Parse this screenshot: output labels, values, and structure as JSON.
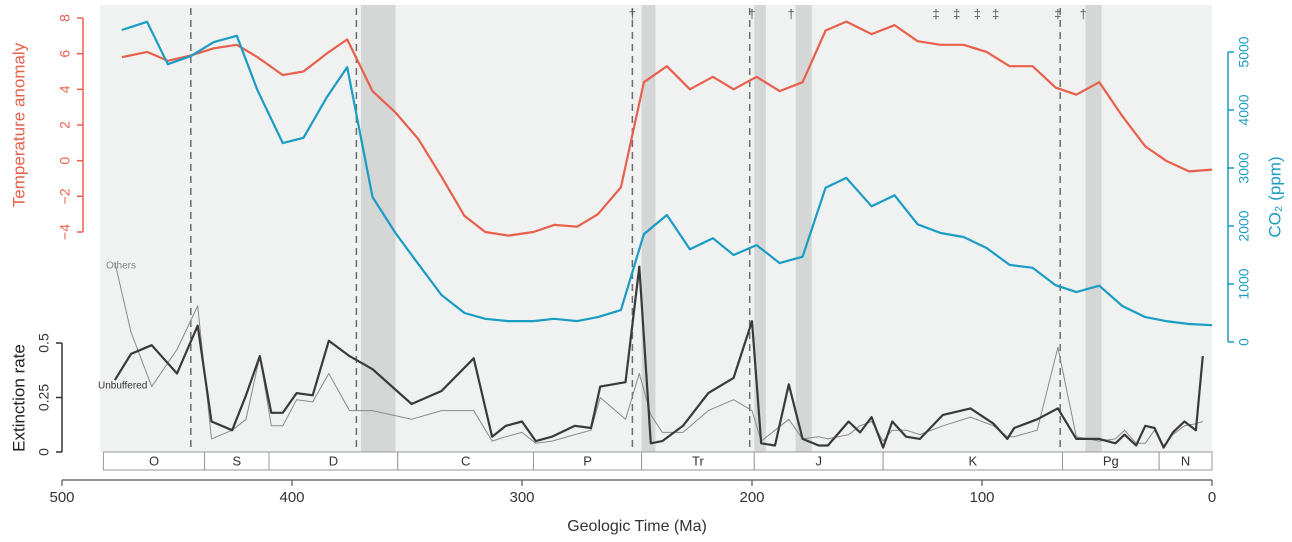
{
  "chart_data": [
    {
      "type": "line",
      "y_label": "Temperature anomaly",
      "y2_label": "CO₂ (ppm)",
      "xlim": [
        500,
        0
      ],
      "ylim": [
        -4,
        8
      ],
      "y2lim": [
        0,
        5000
      ],
      "yticks": [
        8,
        6,
        4,
        2,
        0,
        {
          "value": -2,
          "label": "−2"
        },
        {
          "value": -4,
          "label": "−4"
        }
      ],
      "y2ticks": [
        5000,
        4000,
        3000,
        2000,
        1000,
        0
      ],
      "x": [
        474,
        463,
        454,
        444,
        434,
        424,
        415,
        404,
        395,
        385,
        376,
        365,
        355,
        345,
        335,
        325,
        316,
        306,
        295,
        286,
        276,
        267,
        257,
        247,
        237,
        227,
        217,
        208,
        198,
        188,
        178,
        168,
        159,
        148,
        138,
        128,
        118,
        108,
        98,
        88,
        78,
        68,
        59,
        49,
        39,
        29,
        20,
        10,
        0
      ],
      "series": [
        {
          "color": "#e8604c",
          "axis": "y",
          "values": [
            5.8,
            6.1,
            5.6,
            5.9,
            6.3,
            6.5,
            5.8,
            4.8,
            5.0,
            6.0,
            6.8,
            3.9,
            2.7,
            1.2,
            -0.9,
            -3.1,
            -4.0,
            -4.2,
            -4.0,
            -3.6,
            -3.7,
            -3.0,
            -1.5,
            4.4,
            5.3,
            4.0,
            4.7,
            4.0,
            4.7,
            3.9,
            4.4,
            7.3,
            7.8,
            7.1,
            7.6,
            6.7,
            6.5,
            6.5,
            6.1,
            5.3,
            5.3,
            4.1,
            3.7,
            4.4,
            2.5,
            0.8,
            0.0,
            -0.6,
            -0.5
          ]
        },
        {
          "color": "#1a9cc4",
          "axis": "y2",
          "values": [
            5380,
            5520,
            4790,
            4930,
            5170,
            5280,
            4340,
            3430,
            3520,
            4210,
            4740,
            2500,
            1880,
            1340,
            810,
            500,
            400,
            360,
            360,
            400,
            360,
            430,
            550,
            1860,
            2190,
            1600,
            1790,
            1500,
            1670,
            1360,
            1470,
            2660,
            2830,
            2340,
            2530,
            2030,
            1880,
            1810,
            1620,
            1330,
            1280,
            980,
            860,
            970,
            620,
            430,
            360,
            310,
            290
          ]
        }
      ]
    },
    {
      "type": "line",
      "y_label": "Extinction rate",
      "x_label": "Geologic Time (Ma)",
      "xlim": [
        500,
        0
      ],
      "ylim": [
        0,
        0.5
      ],
      "xticks": [
        500,
        400,
        300,
        200,
        100,
        0
      ],
      "yticks": [
        0.5,
        0.25,
        0
      ],
      "x": [
        477,
        470,
        461,
        450,
        441,
        435,
        426,
        420,
        414,
        409,
        404,
        398,
        391,
        384,
        375,
        365,
        348,
        335,
        321,
        313,
        307,
        300,
        294,
        287,
        277,
        270,
        266,
        255,
        249,
        244,
        239,
        230,
        219,
        208,
        200,
        196,
        190,
        184,
        178,
        171,
        167,
        158,
        153,
        148,
        143,
        139,
        133,
        127,
        117,
        105,
        95,
        89,
        86,
        76,
        67,
        59,
        49,
        42,
        38,
        33,
        29,
        25,
        21,
        17,
        12,
        7,
        4
      ],
      "series": [
        {
          "name": "Others",
          "color": "#8a8a8a",
          "values": [
            0.87,
            0.55,
            0.3,
            0.47,
            0.67,
            0.06,
            0.1,
            0.15,
            0.44,
            0.12,
            0.12,
            0.24,
            0.23,
            0.36,
            0.19,
            0.19,
            0.15,
            0.19,
            0.19,
            0.05,
            0.07,
            0.09,
            0.04,
            0.05,
            0.08,
            0.1,
            0.25,
            0.15,
            0.36,
            0.17,
            0.09,
            0.09,
            0.19,
            0.24,
            0.19,
            0.05,
            0.1,
            0.15,
            0.06,
            0.07,
            0.06,
            0.08,
            0.12,
            0.14,
            0.05,
            0.1,
            0.1,
            0.08,
            0.12,
            0.16,
            0.12,
            0.07,
            0.07,
            0.1,
            0.48,
            0.07,
            0.05,
            0.06,
            0.1,
            0.04,
            0.04,
            0.1,
            0.03,
            0.08,
            0.12,
            0.13,
            0.14
          ]
        },
        {
          "name": "Unbuffered",
          "color": "#3a3a3a",
          "values": [
            0.33,
            0.45,
            0.49,
            0.36,
            0.58,
            0.14,
            0.1,
            0.26,
            0.44,
            0.18,
            0.18,
            0.27,
            0.26,
            0.51,
            0.44,
            0.38,
            0.22,
            0.28,
            0.43,
            0.07,
            0.12,
            0.14,
            0.05,
            0.07,
            0.12,
            0.11,
            0.3,
            0.32,
            0.85,
            0.04,
            0.05,
            0.12,
            0.27,
            0.34,
            0.6,
            0.04,
            0.03,
            0.31,
            0.06,
            0.03,
            0.03,
            0.14,
            0.09,
            0.16,
            0.02,
            0.14,
            0.07,
            0.06,
            0.17,
            0.2,
            0.13,
            0.06,
            0.11,
            0.15,
            0.2,
            0.06,
            0.06,
            0.04,
            0.08,
            0.03,
            0.12,
            0.11,
            0.02,
            0.09,
            0.14,
            0.1,
            0.44
          ]
        }
      ]
    }
  ],
  "periods": [
    {
      "label": "O",
      "start": 482,
      "end": 438
    },
    {
      "label": "S",
      "start": 438,
      "end": 410
    },
    {
      "label": "D",
      "start": 410,
      "end": 354
    },
    {
      "label": "C",
      "start": 354,
      "end": 295
    },
    {
      "label": "P",
      "start": 295,
      "end": 248
    },
    {
      "label": "Tr",
      "start": 248,
      "end": 199
    },
    {
      "label": "J",
      "start": 199,
      "end": 143
    },
    {
      "label": "K",
      "start": 143,
      "end": 65
    },
    {
      "label": "Pg",
      "start": 65,
      "end": 23
    },
    {
      "label": "N",
      "start": 23,
      "end": 0
    }
  ],
  "extinctions": [
    444,
    372,
    252,
    201,
    66
  ],
  "shaded": [
    {
      "start": 370,
      "end": 355
    },
    {
      "start": 248,
      "end": 242
    },
    {
      "start": 199,
      "end": 194
    },
    {
      "start": 181,
      "end": 174
    },
    {
      "start": 55,
      "end": 48
    }
  ],
  "markers": [
    {
      "x": 252,
      "label": "†"
    },
    {
      "x": 200,
      "label": "†"
    },
    {
      "x": 183,
      "label": "†"
    },
    {
      "x": 120,
      "label": "‡"
    },
    {
      "x": 111,
      "label": "‡"
    },
    {
      "x": 102,
      "label": "‡"
    },
    {
      "x": 94,
      "label": "‡"
    },
    {
      "x": 67,
      "label": "‡"
    },
    {
      "x": 56,
      "label": "†"
    }
  ]
}
